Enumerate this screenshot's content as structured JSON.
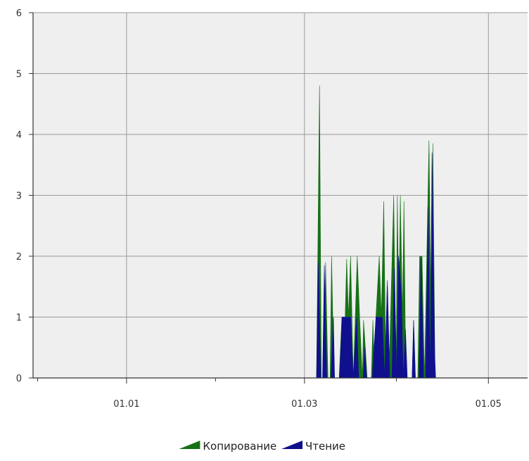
{
  "chart_data": {
    "type": "area",
    "stacked": false,
    "y_ticks": [
      "0",
      "1",
      "2",
      "3",
      "4",
      "5",
      "6"
    ],
    "ylim": [
      0,
      6
    ],
    "x_ticks": [
      {
        "label": "01.01",
        "t": 91
      },
      {
        "label": "01.03",
        "t": 150
      },
      {
        "label": "01.05",
        "t": 211
      }
    ],
    "xlim": [
      60,
      224
    ],
    "grid": true,
    "legend_position": "bottom",
    "series": [
      {
        "name": "Копирование",
        "color": "#167116",
        "points": [
          [
            154.0,
            0
          ],
          [
            155.0,
            4.8
          ],
          [
            155.6,
            0
          ],
          [
            156.5,
            0
          ],
          [
            157.0,
            1.9
          ],
          [
            157.8,
            0
          ],
          [
            158.5,
            0
          ],
          [
            159.0,
            2.0
          ],
          [
            159.8,
            0
          ],
          [
            161.5,
            0
          ],
          [
            162.4,
            1.0
          ],
          [
            163.5,
            1.0
          ],
          [
            164.0,
            1.95
          ],
          [
            164.6,
            1.0
          ],
          [
            165.3,
            2.0
          ],
          [
            166.2,
            0
          ],
          [
            167.5,
            2.0
          ],
          [
            168.3,
            1.0
          ],
          [
            169.2,
            0
          ],
          [
            169.6,
            0.95
          ],
          [
            170.2,
            0.5
          ],
          [
            170.8,
            0
          ],
          [
            172.2,
            0
          ],
          [
            172.7,
            0.95
          ],
          [
            173.3,
            0
          ],
          [
            173.7,
            1.0
          ],
          [
            174.8,
            2.0
          ],
          [
            175.5,
            1.0
          ],
          [
            176.3,
            2.9
          ],
          [
            177.0,
            0
          ],
          [
            177.4,
            1.5
          ],
          [
            178.0,
            0
          ],
          [
            178.6,
            1.1
          ],
          [
            179.6,
            3.0
          ],
          [
            180.4,
            0
          ],
          [
            180.8,
            3.0
          ],
          [
            181.3,
            1.0
          ],
          [
            181.8,
            3.0
          ],
          [
            182.5,
            1.0
          ],
          [
            183.0,
            2.9
          ],
          [
            183.6,
            0
          ],
          [
            185.7,
            0
          ],
          [
            186.2,
            0.95
          ],
          [
            186.8,
            0
          ],
          [
            187.6,
            0
          ],
          [
            188.2,
            2.0
          ],
          [
            189.0,
            2.0
          ],
          [
            189.8,
            0
          ],
          [
            190.5,
            1.8
          ],
          [
            191.3,
            3.9
          ],
          [
            192.0,
            1.0
          ],
          [
            192.6,
            3.85
          ],
          [
            193.3,
            0
          ]
        ]
      },
      {
        "name": "Чтение",
        "color": "#10108f",
        "points": [
          [
            154.0,
            0
          ],
          [
            154.6,
            1.9
          ],
          [
            155.4,
            0
          ],
          [
            156.0,
            0
          ],
          [
            156.6,
            1.85
          ],
          [
            157.4,
            0
          ],
          [
            158.8,
            0
          ],
          [
            159.6,
            1.0
          ],
          [
            160.0,
            0
          ],
          [
            161.6,
            0
          ],
          [
            162.5,
            1.0
          ],
          [
            164.5,
            1.0
          ],
          [
            165.3,
            1.0
          ],
          [
            166.2,
            0
          ],
          [
            167.3,
            1.0
          ],
          [
            168.0,
            0
          ],
          [
            169.5,
            0
          ],
          [
            170.0,
            0.5
          ],
          [
            170.6,
            0
          ],
          [
            172.5,
            0
          ],
          [
            173.7,
            1.0
          ],
          [
            174.8,
            1.0
          ],
          [
            175.8,
            1.0
          ],
          [
            176.6,
            0
          ],
          [
            177.5,
            1.6
          ],
          [
            178.3,
            0
          ],
          [
            179.0,
            0
          ],
          [
            179.8,
            1.8
          ],
          [
            180.6,
            0
          ],
          [
            181.2,
            2.0
          ],
          [
            182.1,
            1.4
          ],
          [
            182.8,
            0
          ],
          [
            183.5,
            0.8
          ],
          [
            184.1,
            0
          ],
          [
            185.7,
            0
          ],
          [
            186.2,
            0.95
          ],
          [
            186.8,
            0
          ],
          [
            188.0,
            0
          ],
          [
            188.7,
            1.95
          ],
          [
            189.5,
            0
          ],
          [
            190.2,
            0
          ],
          [
            191.0,
            2.8
          ],
          [
            191.7,
            0
          ],
          [
            192.3,
            3.7
          ],
          [
            193.2,
            0.4
          ],
          [
            193.5,
            0
          ]
        ]
      }
    ]
  }
}
